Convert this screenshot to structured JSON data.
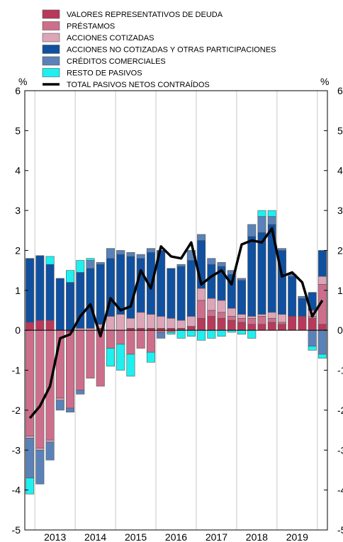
{
  "chart_data": {
    "type": "bar",
    "stacked": true,
    "unit_left": "%",
    "unit_right": "%",
    "ylim": [
      -5,
      6
    ],
    "yticks": [
      -5,
      -4,
      -3,
      -2,
      -1,
      0,
      1,
      2,
      3,
      4,
      5,
      6
    ],
    "year_labels": [
      "2013",
      "2014",
      "2015",
      "2016",
      "2017",
      "2018",
      "2019"
    ],
    "quarters": [
      "2012Q4",
      "2013Q1",
      "2013Q2",
      "2013Q3",
      "2013Q4",
      "2014Q1",
      "2014Q2",
      "2014Q3",
      "2014Q4",
      "2015Q1",
      "2015Q2",
      "2015Q3",
      "2015Q4",
      "2016Q1",
      "2016Q2",
      "2016Q3",
      "2016Q4",
      "2017Q1",
      "2017Q2",
      "2017Q3",
      "2017Q4",
      "2018Q1",
      "2018Q2",
      "2018Q3",
      "2018Q4",
      "2019Q1",
      "2019Q2",
      "2019Q3",
      "2019Q4",
      "2020Q1"
    ],
    "legend_position": "top-left",
    "series": [
      {
        "name": "VALORES REPRESENTATIVOS DE DEUDA",
        "color": "#b8395a",
        "values": [
          0.2,
          0.25,
          0.25,
          0.0,
          -0.05,
          0.0,
          0.0,
          0.05,
          0.0,
          0.0,
          0.05,
          0.05,
          0.05,
          0.05,
          0.05,
          0.05,
          0.1,
          0.3,
          0.35,
          0.3,
          0.25,
          0.2,
          0.15,
          0.15,
          0.2,
          0.15,
          0.35,
          0.35,
          0.3,
          0.15
        ]
      },
      {
        "name": "PRÉSTAMOS",
        "color": "#cd6e8c",
        "values": [
          -2.65,
          -2.95,
          -2.75,
          -1.7,
          -1.9,
          -1.5,
          -1.2,
          -1.4,
          -0.45,
          -0.35,
          -0.6,
          -0.45,
          -0.55,
          -0.05,
          -0.05,
          0.0,
          0.0,
          0.45,
          0.15,
          0.15,
          0.1,
          0.1,
          0.15,
          0.2,
          0.1,
          0.05,
          0.0,
          0.0,
          0.05,
          1.0
        ]
      },
      {
        "name": "ACCIONES COTIZADAS",
        "color": "#dda5b8",
        "values": [
          -0.05,
          -0.05,
          -0.05,
          -0.05,
          0.0,
          0.05,
          0.05,
          0.1,
          0.35,
          0.4,
          0.25,
          0.4,
          0.35,
          0.3,
          0.25,
          0.2,
          0.25,
          0.3,
          0.3,
          0.3,
          0.2,
          0.1,
          0.05,
          0.05,
          0.15,
          0.2,
          0.0,
          0.0,
          0.15,
          0.2
        ]
      },
      {
        "name": "ACCIONES NO COTIZADAS Y OTRAS PARTICIPACIONES",
        "color": "#1050a0",
        "values": [
          1.6,
          1.62,
          1.4,
          1.3,
          1.2,
          1.4,
          1.5,
          1.5,
          1.45,
          1.5,
          1.55,
          1.35,
          1.55,
          1.65,
          1.25,
          1.35,
          1.4,
          1.2,
          0.85,
          0.85,
          0.85,
          0.85,
          2.0,
          2.05,
          2.2,
          1.6,
          1.0,
          0.45,
          0.45,
          0.65
        ]
      },
      {
        "name": "CRÉDITOS COMERCIALES",
        "color": "#5a82b8",
        "values": [
          -1.0,
          -0.85,
          -0.45,
          -0.25,
          -0.1,
          -0.1,
          0.2,
          0.05,
          0.25,
          0.1,
          0.1,
          0.1,
          0.1,
          -0.15,
          0.0,
          0.05,
          0.25,
          0.15,
          0.15,
          0.1,
          0.1,
          0.05,
          0.3,
          0.4,
          0.2,
          0.05,
          0.05,
          0.05,
          -0.4,
          -0.6
        ]
      },
      {
        "name": "RESTO DE PASIVOS",
        "color": "#1ef0f0",
        "values": [
          -0.4,
          0.0,
          0.2,
          0.0,
          0.3,
          0.3,
          0.05,
          0.0,
          -0.45,
          -0.65,
          -0.55,
          0.0,
          -0.25,
          0.0,
          -0.05,
          -0.2,
          -0.15,
          -0.25,
          -0.2,
          -0.15,
          -0.05,
          -0.1,
          -0.2,
          0.15,
          0.15,
          0.0,
          0.0,
          0.0,
          -0.1,
          -0.1
        ]
      }
    ],
    "total": {
      "name": "TOTAL PASIVOS NETOS CONTRAÍDOS",
      "color": "#000000",
      "values": [
        -2.2,
        -1.9,
        -1.4,
        -0.2,
        -0.1,
        0.35,
        0.65,
        -0.15,
        0.8,
        0.5,
        0.6,
        1.5,
        1.05,
        2.1,
        1.85,
        1.8,
        2.2,
        1.15,
        1.35,
        1.5,
        1.15,
        2.15,
        2.25,
        2.2,
        2.55,
        1.35,
        1.45,
        1.2,
        0.35,
        0.75
      ]
    }
  }
}
